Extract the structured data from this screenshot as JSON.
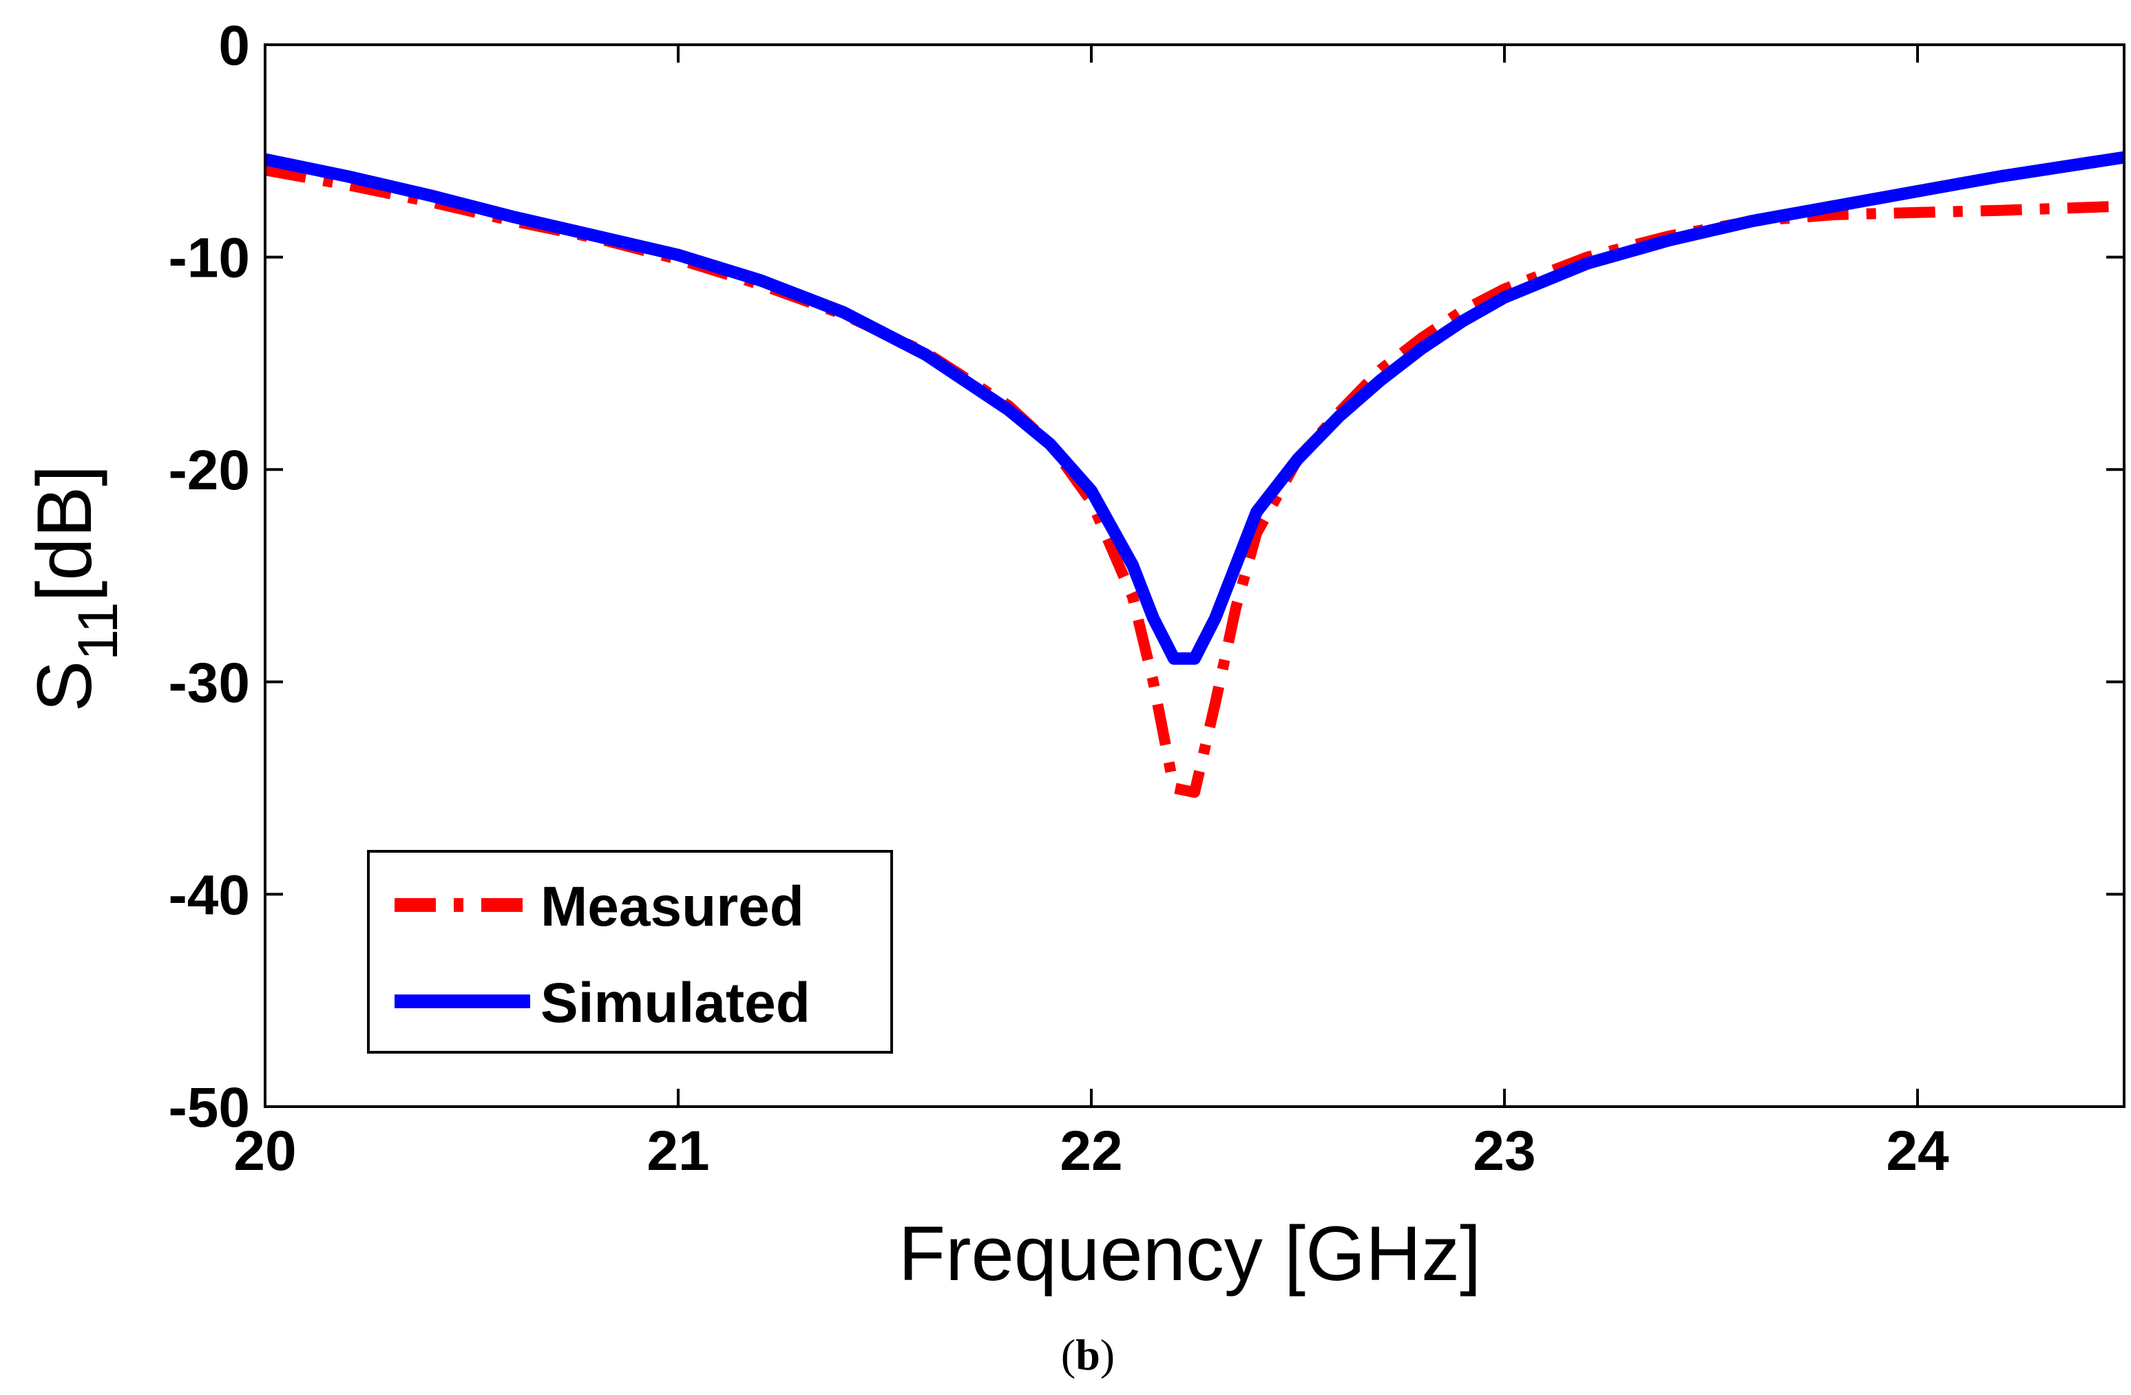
{
  "chart_data": {
    "type": "line",
    "title": "",
    "xlabel": "Frequency [GHz]",
    "ylabel": {
      "main": "S",
      "subscript": "11",
      "unit": "[dB]"
    },
    "xlim": [
      20,
      24.5
    ],
    "ylim": [
      -50,
      0
    ],
    "xticks": [
      "20",
      "21",
      "22",
      "23",
      "24"
    ],
    "yticks": [
      "0",
      "-10",
      "-20",
      "-30",
      "-40",
      "-50"
    ],
    "grid": false,
    "legend_position": "bottom-left",
    "series": [
      {
        "name": "Measured",
        "color": "#ff0000",
        "style": "dash-dot",
        "x": [
          20.0,
          20.2,
          20.4,
          20.6,
          20.8,
          21.0,
          21.2,
          21.4,
          21.6,
          21.8,
          21.9,
          22.0,
          22.1,
          22.15,
          22.2,
          22.25,
          22.3,
          22.35,
          22.4,
          22.5,
          22.6,
          22.7,
          22.8,
          22.9,
          23.0,
          23.2,
          23.4,
          23.6,
          23.8,
          24.0,
          24.2,
          24.5
        ],
        "y": [
          -5.9,
          -6.6,
          -7.4,
          -8.3,
          -9.1,
          -10.1,
          -11.3,
          -12.7,
          -14.5,
          -17.0,
          -18.8,
          -21.5,
          -26.0,
          -30.0,
          -35.0,
          -35.2,
          -31.0,
          -26.5,
          -23.0,
          -19.5,
          -17.3,
          -15.3,
          -13.8,
          -12.5,
          -11.5,
          -10.0,
          -9.0,
          -8.3,
          -8.0,
          -7.9,
          -7.8,
          -7.6
        ]
      },
      {
        "name": "Simulated",
        "color": "#0000ff",
        "style": "solid",
        "x": [
          20.0,
          20.2,
          20.4,
          20.6,
          20.8,
          21.0,
          21.2,
          21.4,
          21.6,
          21.8,
          21.9,
          22.0,
          22.1,
          22.15,
          22.2,
          22.25,
          22.3,
          22.35,
          22.4,
          22.5,
          22.6,
          22.7,
          22.8,
          22.9,
          23.0,
          23.2,
          23.4,
          23.6,
          23.8,
          24.0,
          24.2,
          24.5
        ],
        "y": [
          -5.4,
          -6.2,
          -7.1,
          -8.1,
          -9.0,
          -9.9,
          -11.1,
          -12.6,
          -14.6,
          -17.2,
          -18.8,
          -21.0,
          -24.5,
          -27.0,
          -28.9,
          -28.9,
          -27.0,
          -24.5,
          -22.0,
          -19.5,
          -17.5,
          -15.8,
          -14.3,
          -13.0,
          -11.9,
          -10.3,
          -9.2,
          -8.3,
          -7.6,
          -6.9,
          -6.2,
          -5.3
        ]
      }
    ]
  },
  "caption": {
    "open": "(",
    "letter": "b",
    "close": ")"
  }
}
